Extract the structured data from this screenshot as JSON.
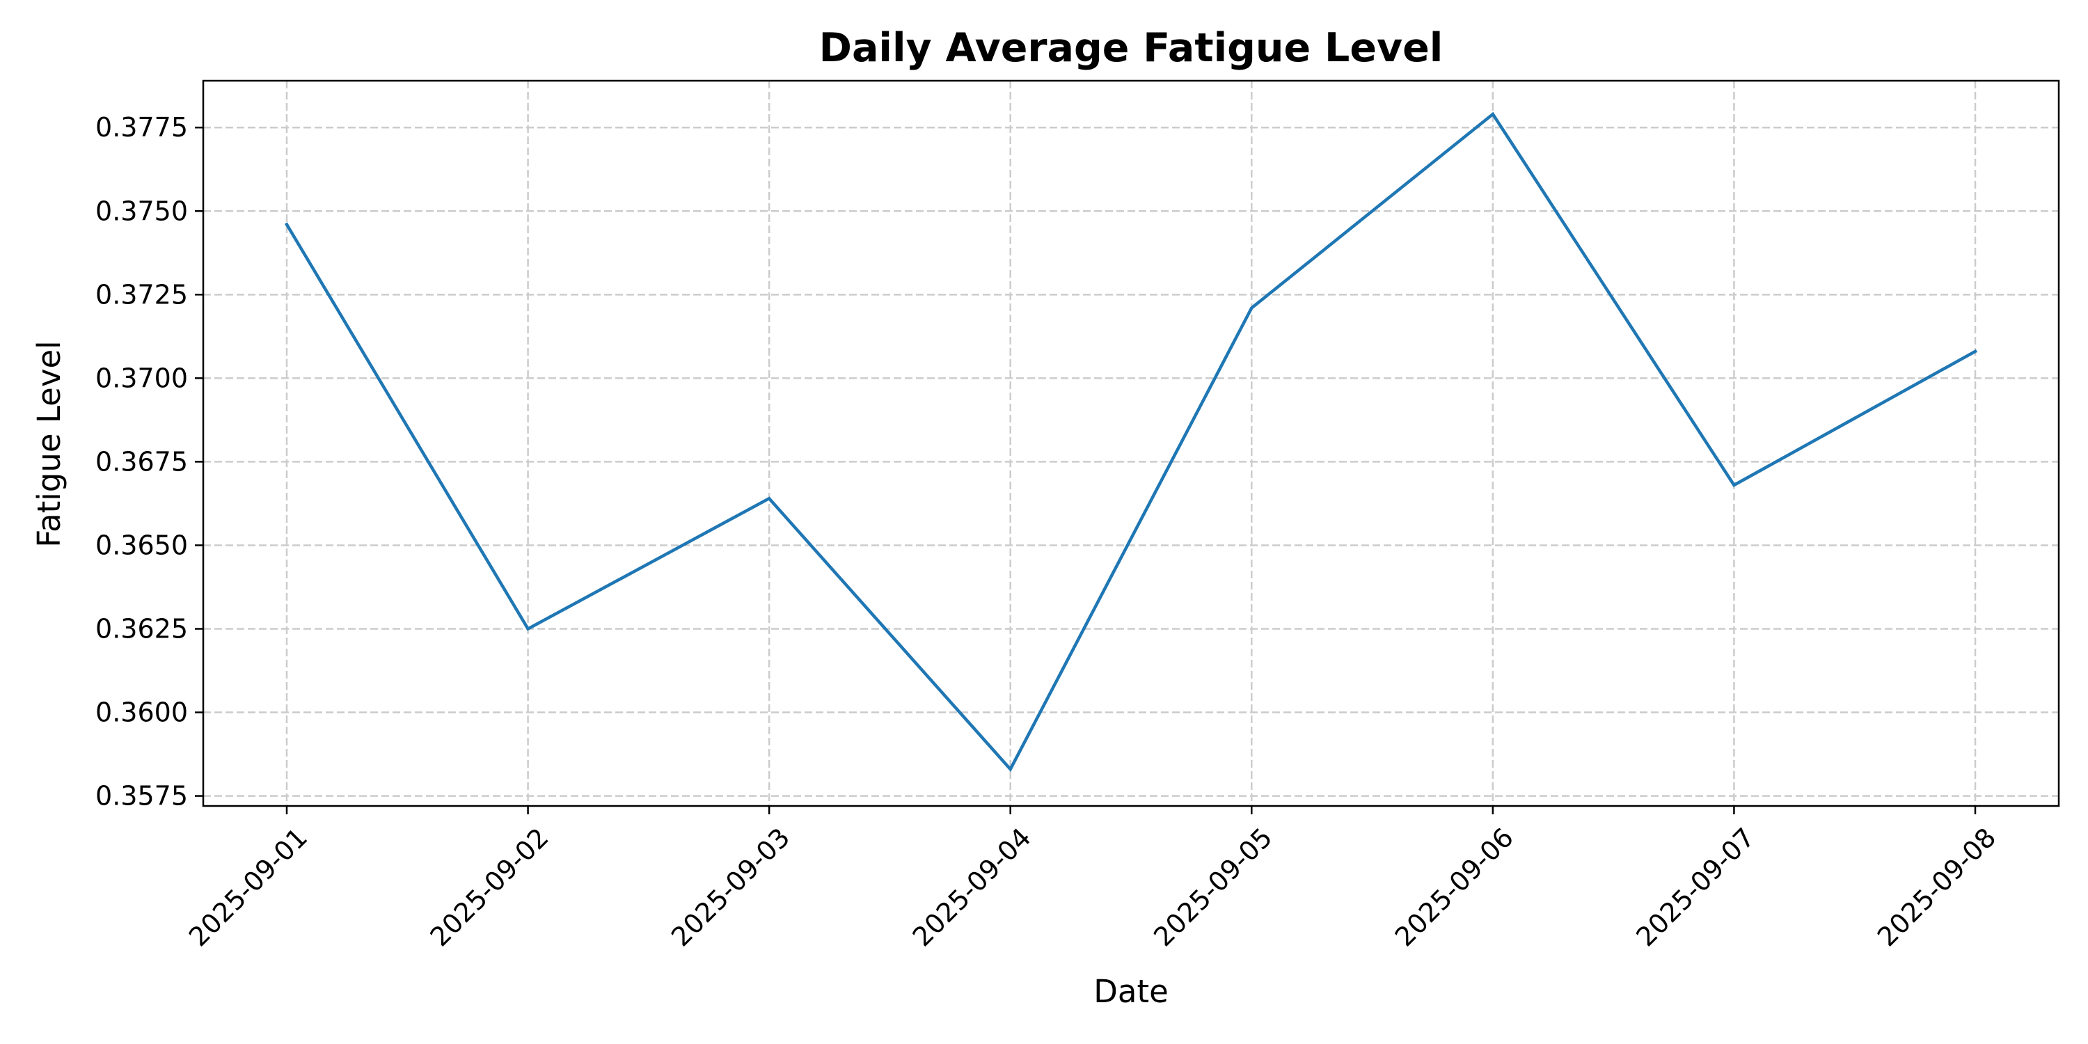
{
  "chart_data": {
    "type": "line",
    "title": "Daily Average Fatigue Level",
    "xlabel": "Date",
    "ylabel": "Fatigue Level",
    "x": [
      "2025-09-01",
      "2025-09-02",
      "2025-09-03",
      "2025-09-04",
      "2025-09-05",
      "2025-09-06",
      "2025-09-07",
      "2025-09-08"
    ],
    "series": [
      {
        "values": [
          0.3746,
          0.3625,
          0.3664,
          0.3583,
          0.3721,
          0.3779,
          0.3668,
          0.3708
        ],
        "color": "#1f77b4"
      }
    ],
    "y_ticks": [
      "0.3575",
      "0.3600",
      "0.3625",
      "0.3650",
      "0.3675",
      "0.3700",
      "0.3725",
      "0.3750",
      "0.3775"
    ],
    "ylim": [
      0.3572,
      0.3789
    ],
    "grid": true,
    "x_tick_rotation": 45
  }
}
